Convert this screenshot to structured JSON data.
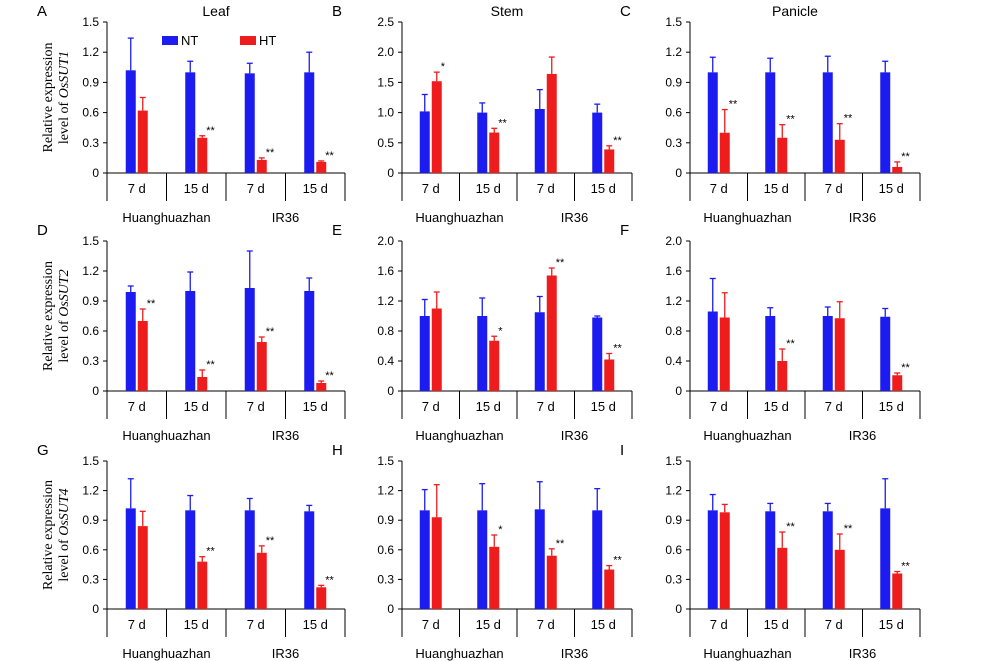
{
  "colors": {
    "NT": "#1c1cf0",
    "HT": "#ee1c1c"
  },
  "legend": [
    "NT",
    "HT"
  ],
  "panels": [
    {
      "label": "A",
      "title": "Leaf",
      "ylabel_prefix": "Relative expression",
      "ylabel_line2": "level of ",
      "ylabel_gene": "OsSUT1",
      "ylim": [
        0,
        1.5
      ],
      "yticks": [
        "0",
        "0.3",
        "0.6",
        "0.9",
        "1.2",
        "1.5"
      ],
      "categories": [
        "7 d",
        "15 d",
        "7 d",
        "15 d"
      ],
      "groups": [
        "Huanghuazhan",
        "IR36"
      ],
      "NT": [
        1.02,
        1.0,
        0.99,
        1.0
      ],
      "NT_err": [
        0.32,
        0.11,
        0.1,
        0.2
      ],
      "HT": [
        0.62,
        0.35,
        0.13,
        0.11
      ],
      "HT_err": [
        0.13,
        0.02,
        0.02,
        0.01
      ],
      "sig": [
        "",
        "**",
        "**",
        "**"
      ]
    },
    {
      "label": "B",
      "title": "Stem",
      "ylim": [
        0,
        2.5
      ],
      "yticks": [
        "0",
        "0.5",
        "1.0",
        "1.5",
        "2.0",
        "2.5"
      ],
      "categories": [
        "7 d",
        "15 d",
        "7 d",
        "15 d"
      ],
      "groups": [
        "Huanghuazhan",
        "IR36"
      ],
      "NT": [
        1.02,
        1.0,
        1.06,
        1.0
      ],
      "NT_err": [
        0.28,
        0.16,
        0.32,
        0.14
      ],
      "HT": [
        1.52,
        0.67,
        1.64,
        0.39
      ],
      "HT_err": [
        0.15,
        0.07,
        0.28,
        0.06
      ],
      "sig": [
        "*",
        "**",
        "",
        "**"
      ]
    },
    {
      "label": "C",
      "title": "Panicle",
      "ylim": [
        0,
        1.5
      ],
      "yticks": [
        "0",
        "0.3",
        "0.6",
        "0.9",
        "1.2",
        "1.5"
      ],
      "categories": [
        "7 d",
        "15 d",
        "7 d",
        "15 d"
      ],
      "groups": [
        "Huanghuazhan",
        "IR36"
      ],
      "NT": [
        1.0,
        1.0,
        1.0,
        1.0
      ],
      "NT_err": [
        0.15,
        0.14,
        0.16,
        0.11
      ],
      "HT": [
        0.4,
        0.35,
        0.33,
        0.06
      ],
      "HT_err": [
        0.23,
        0.13,
        0.16,
        0.05
      ],
      "sig": [
        "**",
        "**",
        "**",
        "**"
      ]
    },
    {
      "label": "D",
      "title": "",
      "ylabel_prefix": "Relative expression",
      "ylabel_line2": "level of ",
      "ylabel_gene": "OsSUT2",
      "ylim": [
        0,
        1.5
      ],
      "yticks": [
        "0",
        "0.3",
        "0.6",
        "0.9",
        "1.2",
        "1.5"
      ],
      "categories": [
        "7 d",
        "15 d",
        "7 d",
        "15 d"
      ],
      "groups": [
        "Huanghuazhan",
        "IR36"
      ],
      "NT": [
        0.99,
        1.0,
        1.03,
        1.0
      ],
      "NT_err": [
        0.06,
        0.19,
        0.37,
        0.13
      ],
      "HT": [
        0.7,
        0.14,
        0.49,
        0.08
      ],
      "HT_err": [
        0.12,
        0.07,
        0.05,
        0.02
      ],
      "sig": [
        "**",
        "**",
        "**",
        "**"
      ]
    },
    {
      "label": "E",
      "title": "",
      "ylim": [
        0,
        2.0
      ],
      "yticks": [
        "0",
        "0.4",
        "0.8",
        "1.2",
        "1.6",
        "2.0"
      ],
      "categories": [
        "7 d",
        "15 d",
        "7 d",
        "15 d"
      ],
      "groups": [
        "Huanghuazhan",
        "IR36"
      ],
      "NT": [
        1.0,
        1.0,
        1.05,
        0.98
      ],
      "NT_err": [
        0.22,
        0.24,
        0.21,
        0.02
      ],
      "HT": [
        1.1,
        0.67,
        1.54,
        0.42
      ],
      "HT_err": [
        0.22,
        0.06,
        0.1,
        0.08
      ],
      "sig": [
        "",
        "*",
        "**",
        "**"
      ]
    },
    {
      "label": "F",
      "title": "",
      "ylim": [
        0,
        2.0
      ],
      "yticks": [
        "0",
        "0.4",
        "0.8",
        "1.2",
        "1.6",
        "2.0"
      ],
      "categories": [
        "7 d",
        "15 d",
        "7 d",
        "15 d"
      ],
      "groups": [
        "Huanghuazhan",
        "IR36"
      ],
      "NT": [
        1.06,
        1.0,
        1.0,
        0.99
      ],
      "NT_err": [
        0.44,
        0.11,
        0.12,
        0.11
      ],
      "HT": [
        0.98,
        0.4,
        0.97,
        0.21
      ],
      "HT_err": [
        0.33,
        0.16,
        0.22,
        0.03
      ],
      "sig": [
        "",
        "**",
        "",
        "**"
      ]
    },
    {
      "label": "G",
      "title": "",
      "ylabel_prefix": "Relative expression",
      "ylabel_line2": "level of ",
      "ylabel_gene": "OsSUT4",
      "ylim": [
        0,
        1.5
      ],
      "yticks": [
        "0",
        "0.3",
        "0.6",
        "0.9",
        "1.2",
        "1.5"
      ],
      "categories": [
        "7 d",
        "15 d",
        "7 d",
        "15 d"
      ],
      "groups": [
        "Huanghuazhan",
        "IR36"
      ],
      "NT": [
        1.02,
        1.0,
        1.0,
        0.99
      ],
      "NT_err": [
        0.3,
        0.15,
        0.12,
        0.06
      ],
      "HT": [
        0.84,
        0.48,
        0.57,
        0.22
      ],
      "HT_err": [
        0.15,
        0.05,
        0.07,
        0.02
      ],
      "sig": [
        "",
        "**",
        "**",
        "**"
      ]
    },
    {
      "label": "H",
      "title": "",
      "ylim": [
        0,
        1.5
      ],
      "yticks": [
        "0",
        "0.3",
        "0.6",
        "0.9",
        "1.2",
        "1.5"
      ],
      "categories": [
        "7 d",
        "15 d",
        "7 d",
        "15 d"
      ],
      "groups": [
        "Huanghuazhan",
        "IR36"
      ],
      "NT": [
        1.0,
        1.0,
        1.01,
        1.0
      ],
      "NT_err": [
        0.21,
        0.27,
        0.28,
        0.22
      ],
      "HT": [
        0.93,
        0.63,
        0.54,
        0.4
      ],
      "HT_err": [
        0.33,
        0.12,
        0.07,
        0.04
      ],
      "sig": [
        "",
        "*",
        "**",
        "**"
      ]
    },
    {
      "label": "I",
      "title": "",
      "ylim": [
        0,
        1.5
      ],
      "yticks": [
        "0",
        "0.3",
        "0.6",
        "0.9",
        "1.2",
        "1.5"
      ],
      "categories": [
        "7 d",
        "15 d",
        "7 d",
        "15 d"
      ],
      "groups": [
        "Huanghuazhan",
        "IR36"
      ],
      "NT": [
        1.0,
        0.99,
        0.99,
        1.02
      ],
      "NT_err": [
        0.16,
        0.08,
        0.08,
        0.3
      ],
      "HT": [
        0.98,
        0.62,
        0.6,
        0.36
      ],
      "HT_err": [
        0.08,
        0.16,
        0.16,
        0.02
      ],
      "sig": [
        "",
        "**",
        "**",
        "**"
      ]
    }
  ],
  "chart_data": [
    {
      "type": "bar",
      "panel": "A",
      "title": "Leaf",
      "ylabel": "Relative expression level of OsSUT1",
      "categories": [
        "7 d",
        "15 d",
        "7 d",
        "15 d"
      ],
      "groups": [
        "Huanghuazhan",
        "IR36"
      ],
      "ylim": [
        0,
        1.5
      ],
      "series": [
        {
          "name": "NT",
          "values": [
            1.02,
            1.0,
            0.99,
            1.0
          ]
        },
        {
          "name": "HT",
          "values": [
            0.62,
            0.35,
            0.13,
            0.11
          ]
        }
      ]
    },
    {
      "type": "bar",
      "panel": "B",
      "title": "Stem",
      "categories": [
        "7 d",
        "15 d",
        "7 d",
        "15 d"
      ],
      "groups": [
        "Huanghuazhan",
        "IR36"
      ],
      "ylim": [
        0,
        2.5
      ],
      "series": [
        {
          "name": "NT",
          "values": [
            1.02,
            1.0,
            1.06,
            1.0
          ]
        },
        {
          "name": "HT",
          "values": [
            1.52,
            0.67,
            1.64,
            0.39
          ]
        }
      ]
    },
    {
      "type": "bar",
      "panel": "C",
      "title": "Panicle",
      "categories": [
        "7 d",
        "15 d",
        "7 d",
        "15 d"
      ],
      "groups": [
        "Huanghuazhan",
        "IR36"
      ],
      "ylim": [
        0,
        1.5
      ],
      "series": [
        {
          "name": "NT",
          "values": [
            1.0,
            1.0,
            1.0,
            1.0
          ]
        },
        {
          "name": "HT",
          "values": [
            0.4,
            0.35,
            0.33,
            0.06
          ]
        }
      ]
    },
    {
      "type": "bar",
      "panel": "D",
      "ylabel": "Relative expression level of OsSUT2",
      "categories": [
        "7 d",
        "15 d",
        "7 d",
        "15 d"
      ],
      "groups": [
        "Huanghuazhan",
        "IR36"
      ],
      "ylim": [
        0,
        1.5
      ],
      "series": [
        {
          "name": "NT",
          "values": [
            0.99,
            1.0,
            1.03,
            1.0
          ]
        },
        {
          "name": "HT",
          "values": [
            0.7,
            0.14,
            0.49,
            0.08
          ]
        }
      ]
    },
    {
      "type": "bar",
      "panel": "E",
      "categories": [
        "7 d",
        "15 d",
        "7 d",
        "15 d"
      ],
      "groups": [
        "Huanghuazhan",
        "IR36"
      ],
      "ylim": [
        0,
        2.0
      ],
      "series": [
        {
          "name": "NT",
          "values": [
            1.0,
            1.0,
            1.05,
            0.98
          ]
        },
        {
          "name": "HT",
          "values": [
            1.1,
            0.67,
            1.54,
            0.42
          ]
        }
      ]
    },
    {
      "type": "bar",
      "panel": "F",
      "categories": [
        "7 d",
        "15 d",
        "7 d",
        "15 d"
      ],
      "groups": [
        "Huanghuazhan",
        "IR36"
      ],
      "ylim": [
        0,
        2.0
      ],
      "series": [
        {
          "name": "NT",
          "values": [
            1.06,
            1.0,
            1.0,
            0.99
          ]
        },
        {
          "name": "HT",
          "values": [
            0.98,
            0.4,
            0.97,
            0.21
          ]
        }
      ]
    },
    {
      "type": "bar",
      "panel": "G",
      "ylabel": "Relative expression level of OsSUT4",
      "categories": [
        "7 d",
        "15 d",
        "7 d",
        "15 d"
      ],
      "groups": [
        "Huanghuazhan",
        "IR36"
      ],
      "ylim": [
        0,
        1.5
      ],
      "series": [
        {
          "name": "NT",
          "values": [
            1.02,
            1.0,
            1.0,
            0.99
          ]
        },
        {
          "name": "HT",
          "values": [
            0.84,
            0.48,
            0.57,
            0.22
          ]
        }
      ]
    },
    {
      "type": "bar",
      "panel": "H",
      "categories": [
        "7 d",
        "15 d",
        "7 d",
        "15 d"
      ],
      "groups": [
        "Huanghuazhan",
        "IR36"
      ],
      "ylim": [
        0,
        1.5
      ],
      "series": [
        {
          "name": "NT",
          "values": [
            1.0,
            1.0,
            1.01,
            1.0
          ]
        },
        {
          "name": "HT",
          "values": [
            0.93,
            0.63,
            0.54,
            0.4
          ]
        }
      ]
    },
    {
      "type": "bar",
      "panel": "I",
      "categories": [
        "7 d",
        "15 d",
        "7 d",
        "15 d"
      ],
      "groups": [
        "Huanghuazhan",
        "IR36"
      ],
      "ylim": [
        0,
        1.5
      ],
      "series": [
        {
          "name": "NT",
          "values": [
            1.0,
            0.99,
            0.99,
            1.02
          ]
        },
        {
          "name": "HT",
          "values": [
            0.98,
            0.62,
            0.6,
            0.36
          ]
        }
      ]
    }
  ]
}
